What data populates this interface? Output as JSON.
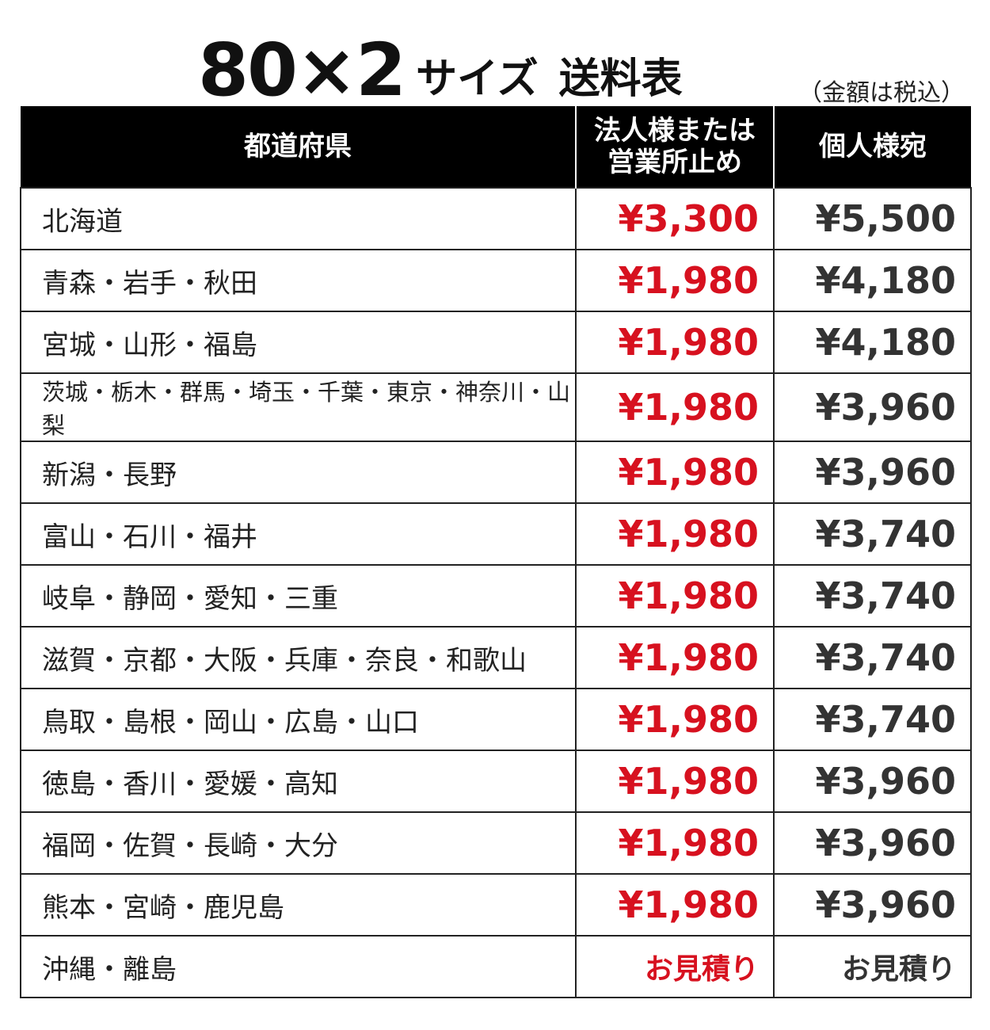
{
  "title": {
    "size": "80×2",
    "size_label": "サイズ",
    "table_label": "送料表"
  },
  "tax_note": "（金額は税込）",
  "colors": {
    "corporate_price": "#d7111f",
    "individual_price": "#333333",
    "header_bg": "#000000"
  },
  "headers": {
    "region": "都道府県",
    "corporate_line1": "法人様または",
    "corporate_line2": "営業所止め",
    "individual": "個人様宛"
  },
  "rows": [
    {
      "region": "北海道",
      "corporate": "¥3,300",
      "individual": "¥5,500"
    },
    {
      "region": "青森・岩手・秋田",
      "corporate": "¥1,980",
      "individual": "¥4,180"
    },
    {
      "region": "宮城・山形・福島",
      "corporate": "¥1,980",
      "individual": "¥4,180"
    },
    {
      "region": "茨城・栃木・群馬・埼玉・千葉・東京・神奈川・山梨",
      "corporate": "¥1,980",
      "individual": "¥3,960"
    },
    {
      "region": "新潟・長野",
      "corporate": "¥1,980",
      "individual": "¥3,960"
    },
    {
      "region": "富山・石川・福井",
      "corporate": "¥1,980",
      "individual": "¥3,740"
    },
    {
      "region": "岐阜・静岡・愛知・三重",
      "corporate": "¥1,980",
      "individual": "¥3,740"
    },
    {
      "region": "滋賀・京都・大阪・兵庫・奈良・和歌山",
      "corporate": "¥1,980",
      "individual": "¥3,740"
    },
    {
      "region": "鳥取・島根・岡山・広島・山口",
      "corporate": "¥1,980",
      "individual": "¥3,740"
    },
    {
      "region": "徳島・香川・愛媛・高知",
      "corporate": "¥1,980",
      "individual": "¥3,960"
    },
    {
      "region": "福岡・佐賀・長崎・大分",
      "corporate": "¥1,980",
      "individual": "¥3,960"
    },
    {
      "region": "熊本・宮崎・鹿児島",
      "corporate": "¥1,980",
      "individual": "¥3,960"
    },
    {
      "region": "沖縄・離島",
      "corporate": "お見積り",
      "individual": "お見積り"
    }
  ]
}
